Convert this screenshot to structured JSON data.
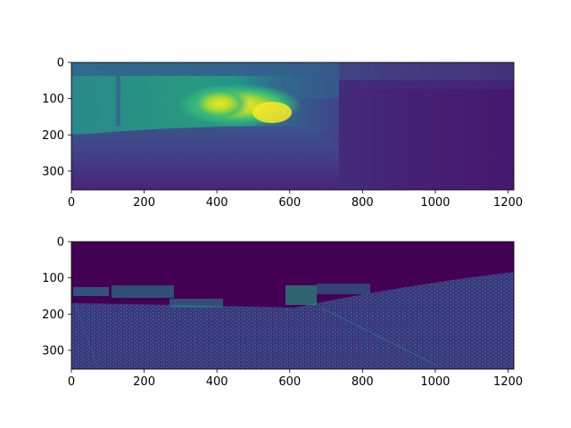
{
  "figure": {
    "background": "#ffffff",
    "colormap": "viridis"
  },
  "chart_data": [
    {
      "type": "heatmap",
      "title": "",
      "xlabel": "",
      "ylabel": "",
      "xlim": [
        0,
        1216
      ],
      "ylim": [
        352,
        0
      ],
      "xticks": [
        0,
        200,
        400,
        600,
        800,
        1000,
        1200
      ],
      "yticks": [
        0,
        100,
        200,
        300
      ],
      "grid": false,
      "legend": "none",
      "colormap": "viridis",
      "description_values": "dense depth map; bright region (high values) around x 350-650, y 80-170; dark right side and bottom"
    },
    {
      "type": "heatmap",
      "title": "",
      "xlabel": "",
      "ylabel": "",
      "xlim": [
        0,
        1216
      ],
      "ylim": [
        352,
        0
      ],
      "xticks": [
        0,
        200,
        400,
        600,
        800,
        1000,
        1200
      ],
      "yticks": [
        0,
        100,
        200,
        300
      ],
      "grid": false,
      "legend": "none",
      "colormap": "viridis"
    }
  ]
}
